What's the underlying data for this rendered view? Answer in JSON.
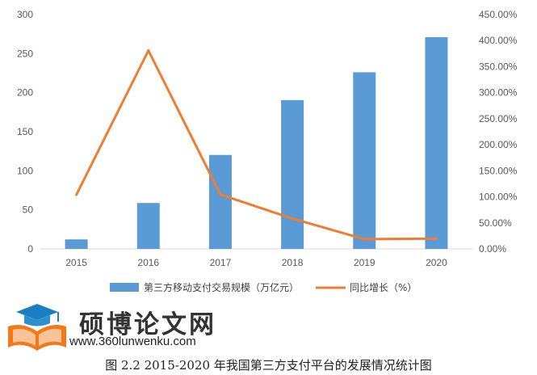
{
  "chart_data": {
    "type": "bar+line",
    "categories": [
      "2015",
      "2016",
      "2017",
      "2018",
      "2019",
      "2020"
    ],
    "series": [
      {
        "name": "第三方移动支付交易规模（万亿元）",
        "type": "bar",
        "axis": "left",
        "color": "#5B9BD5",
        "values": [
          12.2,
          58.8,
          120.3,
          190.5,
          226.1,
          271.0
        ]
      },
      {
        "name": "同比增长（%）",
        "type": "line",
        "axis": "right",
        "color": "#ED7D31",
        "values": [
          104.0,
          381.0,
          104.5,
          58.4,
          18.7,
          19.9
        ]
      }
    ],
    "left_axis": {
      "min": 0,
      "max": 300,
      "step": 50,
      "ticks": [
        "0",
        "50",
        "100",
        "150",
        "200",
        "250",
        "300"
      ]
    },
    "right_axis": {
      "min": 0,
      "max": 450,
      "step": 50,
      "ticks": [
        "0.00%",
        "50.00%",
        "100.00%",
        "150.00%",
        "200.00%",
        "250.00%",
        "300.00%",
        "350.00%",
        "400.00%",
        "450.00%"
      ]
    },
    "grid": false,
    "legend_position": "bottom"
  },
  "watermark": {
    "title": "硕博论文网",
    "url": "www.360lunwenku.com"
  },
  "caption": "图 2.2 2015-2020 年我国第三方支付平台的发展情况统计图"
}
